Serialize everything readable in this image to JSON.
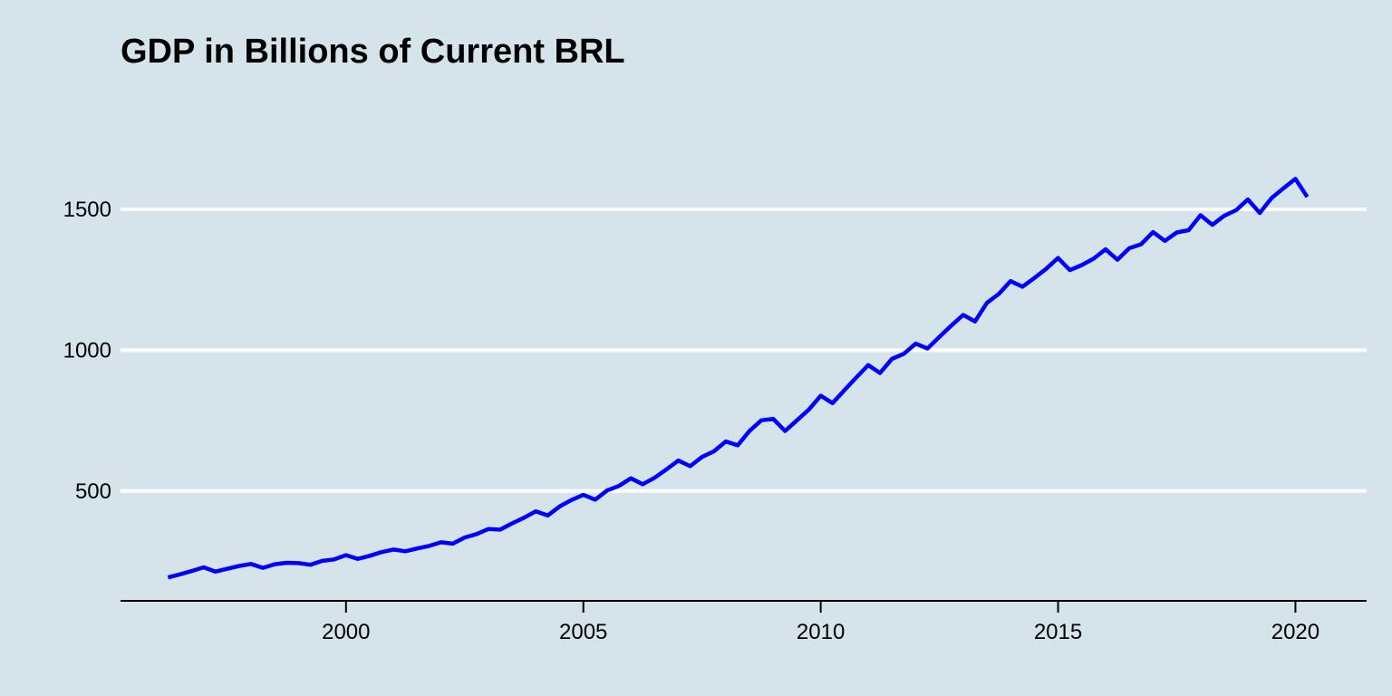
{
  "chart_data": {
    "type": "line",
    "title": "GDP in Billions of Current BRL",
    "xlabel": "",
    "ylabel": "",
    "xlim": [
      1995.25,
      2021.5
    ],
    "ylim": [
      110,
      1960
    ],
    "x_ticks": [
      2000,
      2005,
      2010,
      2015,
      2020
    ],
    "y_ticks": [
      500,
      1000,
      1500
    ],
    "grid": "horizontal",
    "legend": "none",
    "colors": {
      "background": "#d5e4eb",
      "grid": "#ffffff",
      "series": "#0000ff"
    },
    "series": [
      {
        "color": "#0000ff",
        "x": [
          1996.25,
          1996.5,
          1996.75,
          1997,
          1997.25,
          1997.5,
          1997.75,
          1998,
          1998.25,
          1998.5,
          1998.75,
          1999,
          1999.25,
          1999.5,
          1999.75,
          2000,
          2000.25,
          2000.5,
          2000.75,
          2001,
          2001.25,
          2001.5,
          2001.75,
          2002,
          2002.25,
          2002.5,
          2002.75,
          2003,
          2003.25,
          2003.5,
          2003.75,
          2004,
          2004.25,
          2004.5,
          2004.75,
          2005,
          2005.25,
          2005.5,
          2005.75,
          2006,
          2006.25,
          2006.5,
          2006.75,
          2007,
          2007.25,
          2007.5,
          2007.75,
          2008,
          2008.25,
          2008.5,
          2008.75,
          2009,
          2009.25,
          2009.5,
          2009.75,
          2010,
          2010.25,
          2010.5,
          2010.75,
          2011,
          2011.25,
          2011.5,
          2011.75,
          2012,
          2012.25,
          2012.5,
          2012.75,
          2013,
          2013.25,
          2013.5,
          2013.75,
          2014,
          2014.25,
          2014.5,
          2014.75,
          2015,
          2015.25,
          2015.5,
          2015.75,
          2016,
          2016.25,
          2016.5,
          2016.75,
          2017,
          2017.25,
          2017.5,
          2017.75,
          2018,
          2018.25,
          2018.5,
          2018.75,
          2019,
          2019.25,
          2019.5,
          2019.75,
          2020,
          2020.25
        ],
        "values": [
          193,
          204,
          216,
          229,
          214,
          224,
          234,
          241,
          227,
          240,
          245,
          244,
          238,
          252,
          257,
          272,
          259,
          270,
          283,
          292,
          286,
          296,
          305,
          318,
          313,
          335,
          347,
          365,
          363,
          385,
          405,
          428,
          413,
          445,
          468,
          486,
          469,
          502,
          518,
          545,
          524,
          547,
          577,
          608,
          588,
          621,
          641,
          676,
          662,
          713,
          751,
          756,
          713,
          751,
          789,
          838,
          812,
          858,
          903,
          947,
          919,
          969,
          987,
          1023,
          1006,
          1047,
          1087,
          1125,
          1102,
          1168,
          1199,
          1245,
          1225,
          1256,
          1289,
          1327,
          1284,
          1302,
          1325,
          1358,
          1321,
          1362,
          1376,
          1419,
          1388,
          1418,
          1426,
          1479,
          1445,
          1477,
          1497,
          1535,
          1487,
          1540,
          1575,
          1608,
          1544
        ]
      }
    ]
  }
}
